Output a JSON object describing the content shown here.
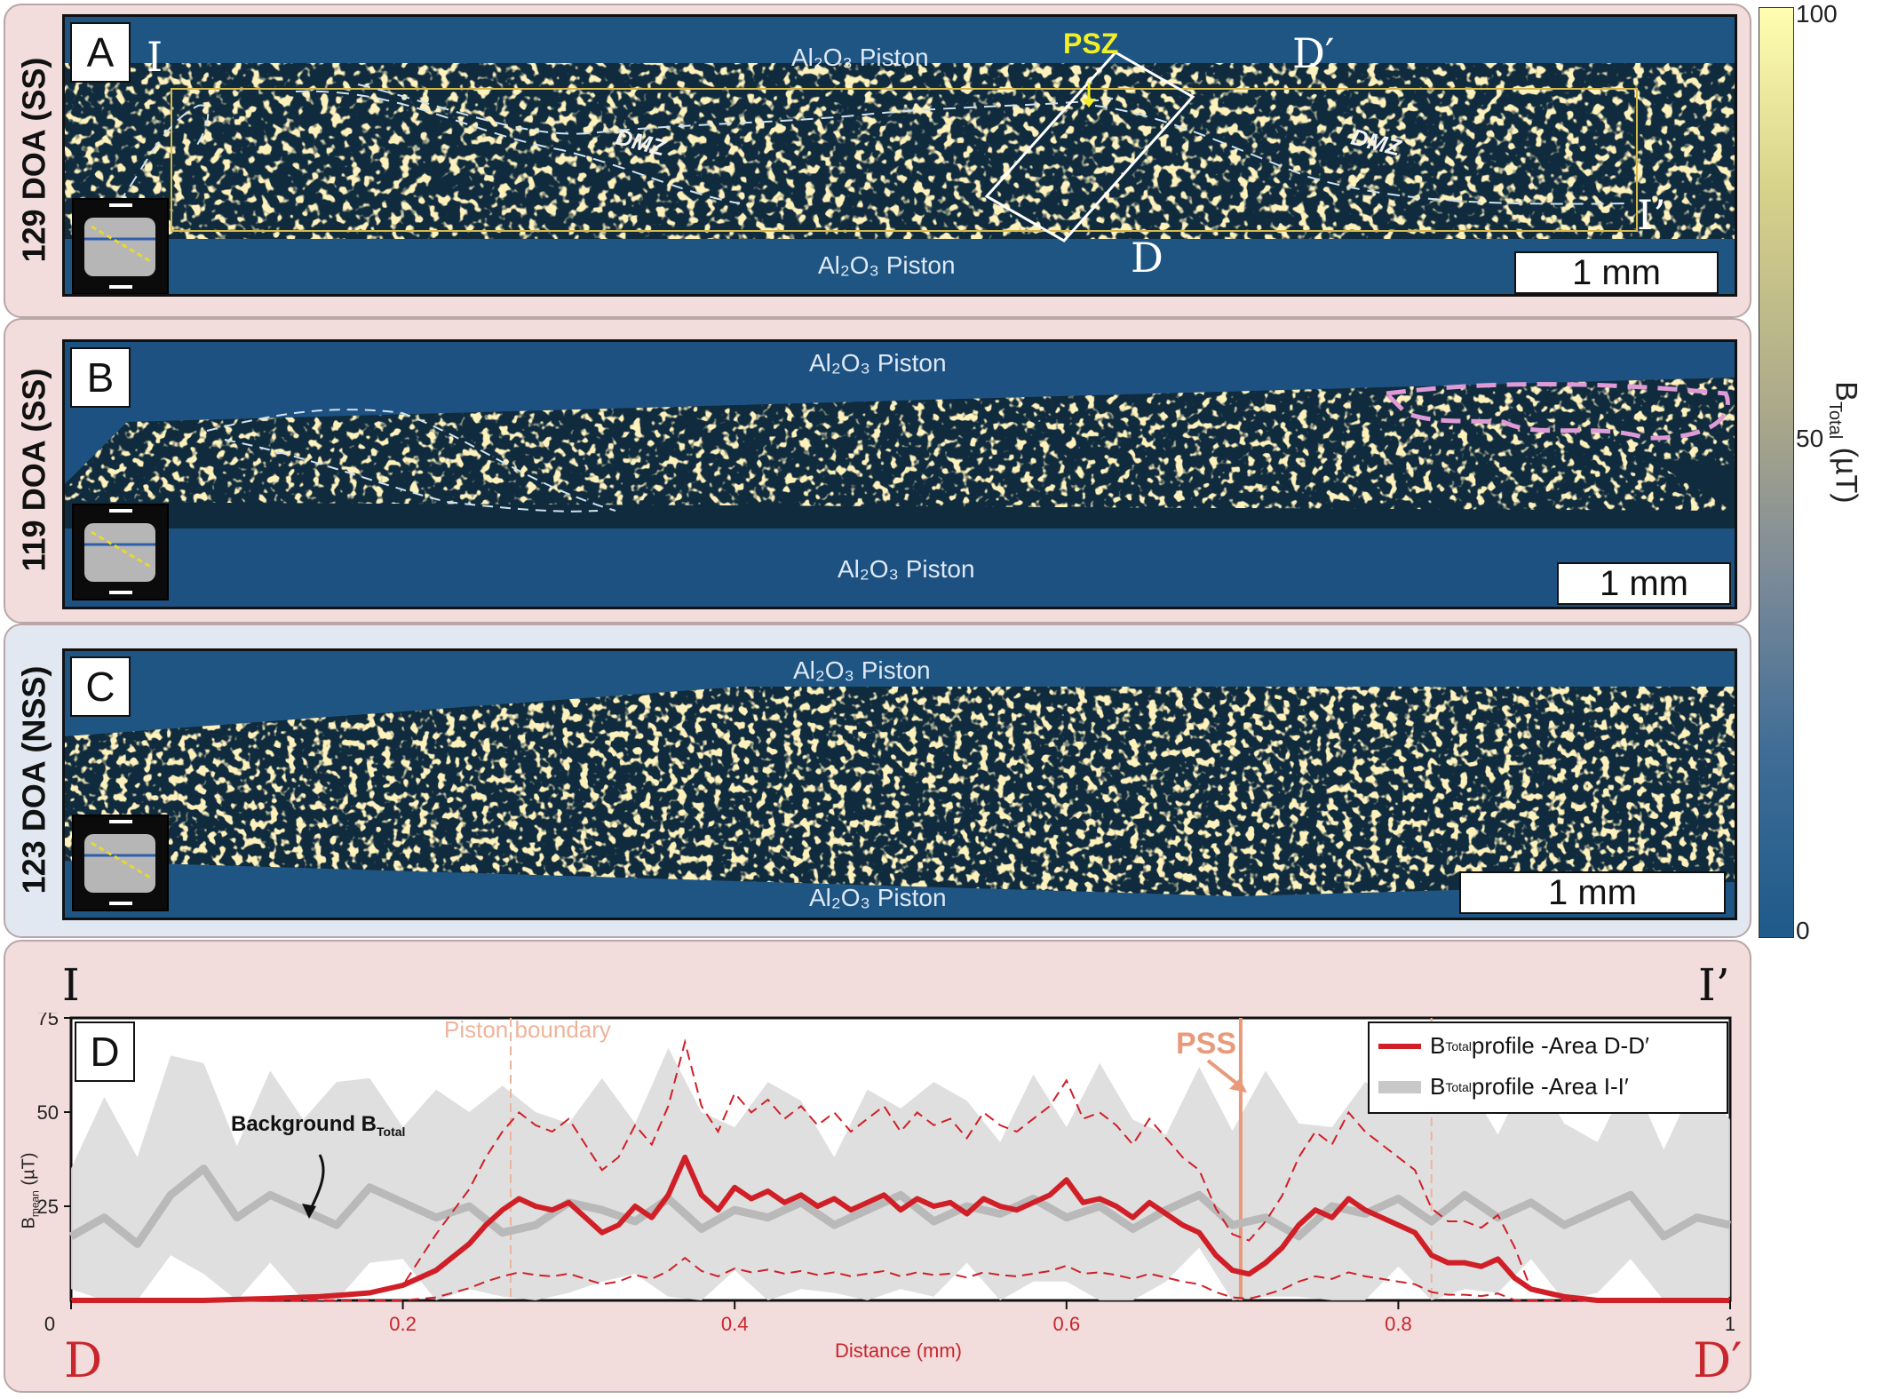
{
  "panels": [
    {
      "letter": "A",
      "row_label": "129 DOA (SS)",
      "piston_top": "Al₂O₃ Piston",
      "piston_bottom": "Al₂O₃ Piston",
      "scale_bar": "1 mm",
      "annotations": {
        "psz": "PSZ",
        "dmz_left": "DMZ",
        "dmz_right": "DMZ",
        "i_start": "I",
        "i_end": "I’",
        "d_start": "D",
        "d_end": "D′"
      }
    },
    {
      "letter": "B",
      "row_label": "119 DOA (SS)",
      "piston_top": "Al₂O₃ Piston",
      "piston_bottom": "Al₂O₃ Piston",
      "scale_bar": "1 mm"
    },
    {
      "letter": "C",
      "row_label": "123 DOA (NSS)",
      "piston_top": "Al₂O₃ Piston",
      "piston_bottom": "Al₂O₃ Piston",
      "scale_bar": "1 mm"
    }
  ],
  "colorbar": {
    "label": "B",
    "label_sub": "Total",
    "label_unit": " (µT)",
    "max": "100",
    "mid": "50",
    "min": "0"
  },
  "chart_panel": {
    "letter": "D",
    "top_left": "I",
    "top_right": "I’",
    "bottom_left": "D",
    "bottom_right": "D′",
    "piston_boundary": "Piston boundary",
    "pss": "PSS",
    "background_label": "Background B",
    "background_label_sub": "Total"
  },
  "chart_data": {
    "type": "line",
    "xlabel": "Distance (mm)",
    "ylabel": "B",
    "ylabel_sub": "mean",
    "ylabel_unit": " (µT)",
    "xlim": [
      0,
      1
    ],
    "ylim": [
      0,
      75
    ],
    "x_ticks": [
      "0",
      "0.2",
      "0.4",
      "0.6",
      "0.8",
      "1"
    ],
    "y_ticks": [
      "25",
      "50",
      "75"
    ],
    "legend": [
      {
        "text": "B",
        "sub": "Total",
        "rest": " profile -Area D-D′",
        "color": "#d01f27"
      },
      {
        "text": "B",
        "sub": "Total",
        "rest": " profile -Area I-I′",
        "color": "#c8c8c8"
      }
    ],
    "vlines": {
      "piston_left": 0.265,
      "pss": 0.705,
      "piston_right": 0.82
    },
    "series": [
      {
        "color": "#d01f27",
        "x": [
          0.0,
          0.08,
          0.12,
          0.15,
          0.18,
          0.2,
          0.22,
          0.24,
          0.25,
          0.26,
          0.27,
          0.28,
          0.29,
          0.3,
          0.31,
          0.32,
          0.33,
          0.34,
          0.35,
          0.36,
          0.37,
          0.38,
          0.39,
          0.4,
          0.41,
          0.42,
          0.43,
          0.44,
          0.45,
          0.46,
          0.47,
          0.48,
          0.49,
          0.5,
          0.51,
          0.52,
          0.53,
          0.54,
          0.55,
          0.56,
          0.57,
          0.58,
          0.59,
          0.6,
          0.61,
          0.62,
          0.63,
          0.64,
          0.65,
          0.66,
          0.67,
          0.68,
          0.69,
          0.7,
          0.71,
          0.72,
          0.73,
          0.74,
          0.75,
          0.76,
          0.77,
          0.78,
          0.79,
          0.8,
          0.81,
          0.82,
          0.83,
          0.84,
          0.85,
          0.86,
          0.87,
          0.88,
          0.9,
          0.92,
          1.0
        ],
        "y": [
          0,
          0,
          0.5,
          1,
          2,
          4,
          8,
          15,
          20,
          24,
          27,
          25,
          24,
          26,
          22,
          18,
          20,
          25,
          22,
          28,
          38,
          28,
          24,
          30,
          27,
          29,
          26,
          28,
          25,
          27,
          24,
          26,
          28,
          24,
          27,
          25,
          26,
          23,
          27,
          25,
          24,
          26,
          28,
          32,
          26,
          27,
          25,
          22,
          26,
          23,
          20,
          18,
          12,
          8,
          7,
          10,
          14,
          20,
          24,
          22,
          27,
          24,
          22,
          20,
          18,
          12,
          10,
          10,
          9,
          11,
          6,
          3,
          1,
          0,
          0
        ]
      },
      {
        "color": "#b9b9b9",
        "x": [
          0.0,
          0.02,
          0.04,
          0.06,
          0.08,
          0.1,
          0.12,
          0.14,
          0.16,
          0.18,
          0.2,
          0.22,
          0.24,
          0.26,
          0.28,
          0.3,
          0.32,
          0.34,
          0.36,
          0.38,
          0.4,
          0.42,
          0.44,
          0.46,
          0.48,
          0.5,
          0.52,
          0.54,
          0.56,
          0.58,
          0.6,
          0.62,
          0.64,
          0.66,
          0.68,
          0.7,
          0.72,
          0.74,
          0.76,
          0.78,
          0.8,
          0.82,
          0.84,
          0.86,
          0.88,
          0.9,
          0.92,
          0.94,
          0.96,
          0.98,
          1.0
        ],
        "y": [
          17,
          22,
          15,
          28,
          35,
          22,
          28,
          24,
          20,
          30,
          26,
          22,
          25,
          18,
          20,
          26,
          24,
          21,
          27,
          19,
          24,
          22,
          26,
          20,
          24,
          28,
          21,
          25,
          23,
          27,
          22,
          25,
          19,
          24,
          28,
          20,
          22,
          17,
          25,
          23,
          27,
          21,
          28,
          22,
          26,
          20,
          24,
          28,
          17,
          22,
          20
        ]
      }
    ]
  }
}
